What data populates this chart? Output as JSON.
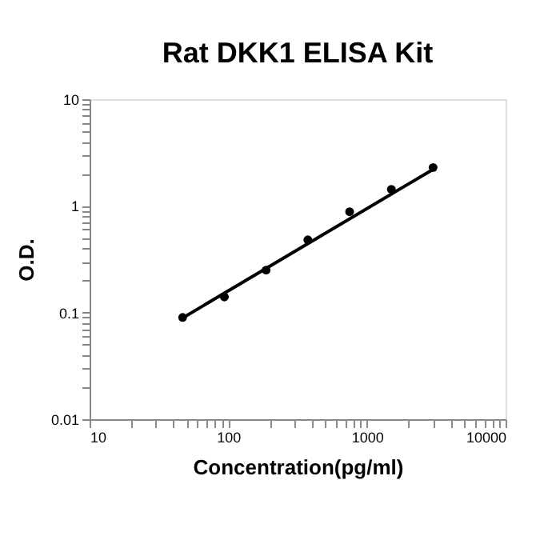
{
  "chart_data": {
    "type": "scatter",
    "title": "Rat DKK1 ELISA Kit",
    "xlabel": "Concentration(pg/ml)",
    "ylabel": "O.D.",
    "log": "xy",
    "grid": false,
    "marker": "circle",
    "xlim": [
      10,
      10000
    ],
    "ylim": [
      0.01,
      10
    ],
    "xticks": [
      10,
      {
        "value": 20,
        "label": null
      },
      {
        "value": 30,
        "label": null
      },
      {
        "value": 40,
        "label": null
      },
      {
        "value": 50,
        "label": null
      },
      {
        "value": 60,
        "label": null
      },
      {
        "value": 70,
        "label": null
      },
      {
        "value": 80,
        "label": null
      },
      {
        "value": 90,
        "label": null
      },
      100,
      {
        "value": 200,
        "label": null
      },
      {
        "value": 300,
        "label": null
      },
      {
        "value": 400,
        "label": null
      },
      {
        "value": 500,
        "label": null
      },
      {
        "value": 600,
        "label": null
      },
      {
        "value": 700,
        "label": null
      },
      {
        "value": 800,
        "label": null
      },
      {
        "value": 900,
        "label": null
      },
      1000,
      {
        "value": 2000,
        "label": null
      },
      {
        "value": 3000,
        "label": null
      },
      {
        "value": 4000,
        "label": null
      },
      {
        "value": 5000,
        "label": null
      },
      {
        "value": 6000,
        "label": null
      },
      {
        "value": 7000,
        "label": null
      },
      {
        "value": 8000,
        "label": null
      },
      {
        "value": 9000,
        "label": null
      },
      10000
    ],
    "yticks": [
      0.01,
      {
        "value": 0.02,
        "label": null
      },
      {
        "value": 0.03,
        "label": null
      },
      {
        "value": 0.04,
        "label": null
      },
      {
        "value": 0.05,
        "label": null
      },
      {
        "value": 0.06,
        "label": null
      },
      {
        "value": 0.07,
        "label": null
      },
      {
        "value": 0.08,
        "label": null
      },
      {
        "value": 0.09,
        "label": null
      },
      0.1,
      {
        "value": 0.2,
        "label": null
      },
      {
        "value": 0.3,
        "label": null
      },
      {
        "value": 0.4,
        "label": null
      },
      {
        "value": 0.5,
        "label": null
      },
      {
        "value": 0.6,
        "label": null
      },
      {
        "value": 0.7,
        "label": null
      },
      {
        "value": 0.8,
        "label": null
      },
      {
        "value": 0.9,
        "label": null
      },
      1,
      {
        "value": 2,
        "label": null
      },
      {
        "value": 3,
        "label": null
      },
      {
        "value": 4,
        "label": null
      },
      {
        "value": 5,
        "label": null
      },
      {
        "value": 6,
        "label": null
      },
      {
        "value": 7,
        "label": null
      },
      {
        "value": 8,
        "label": null
      },
      {
        "value": 9,
        "label": null
      },
      10
    ],
    "series": [
      {
        "color": "#000000",
        "x": [
          46.875,
          93.75,
          187.5,
          375,
          750,
          1500,
          3000
        ],
        "values": [
          0.09,
          0.14,
          0.25,
          0.48,
          0.88,
          1.43,
          2.29
        ]
      },
      {
        "type": "line",
        "color": "#000000",
        "line_style": "solid",
        "marker": "none",
        "x": [
          46.875,
          3000
        ],
        "values": [
          0.089,
          2.2
        ]
      }
    ]
  }
}
